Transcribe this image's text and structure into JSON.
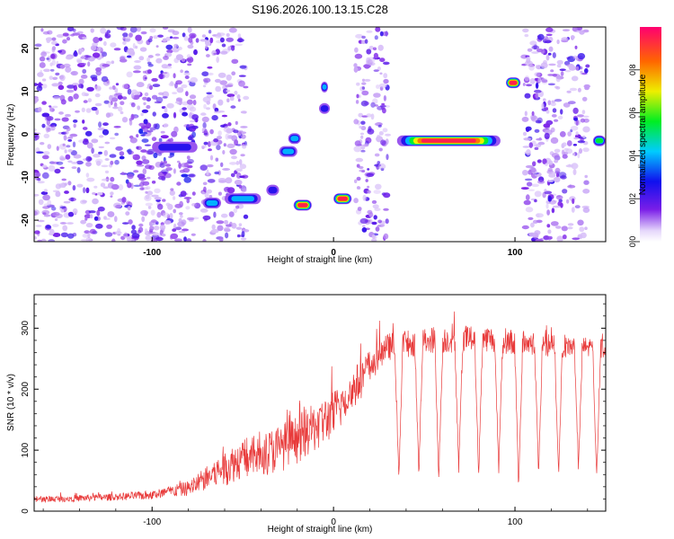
{
  "title": "S196.2026.100.13.15.C28",
  "chart_data": [
    {
      "type": "heatmap",
      "name": "spectrogram",
      "xlabel": "Height of straight line (km)",
      "ylabel": "Frequency (Hz)",
      "xlim": [
        -165,
        150
      ],
      "ylim": [
        -25,
        25
      ],
      "xticks": [
        -100,
        0,
        100
      ],
      "yticks": [
        -20,
        -10,
        0,
        10,
        20
      ],
      "colorbar": {
        "label": "Normalized spectral amplitude",
        "range": [
          0,
          1
        ],
        "ticks": [
          0.0,
          0.2,
          0.4,
          0.6,
          0.8
        ]
      },
      "noise_regions_x": [
        [
          -165,
          -75
        ],
        [
          -72,
          -48
        ],
        [
          12,
          30
        ],
        [
          105,
          140
        ]
      ],
      "features": [
        {
          "x": [
            -100,
            -75
          ],
          "y": -3,
          "amplitude": 0.35
        },
        {
          "x": [
            -72,
            -62
          ],
          "y": -16,
          "amplitude": 0.45
        },
        {
          "x": [
            -60,
            -40
          ],
          "y": -15,
          "amplitude": 0.45
        },
        {
          "x": [
            -37,
            -30
          ],
          "y": -13,
          "amplitude": 0.35
        },
        {
          "x": [
            -30,
            -20
          ],
          "y": -4,
          "amplitude": 0.5
        },
        {
          "x": [
            -25,
            -18
          ],
          "y": -1,
          "amplitude": 0.5
        },
        {
          "x": [
            -22,
            -12
          ],
          "y": -16.5,
          "amplitude": 0.95
        },
        {
          "x": [
            -8,
            -2
          ],
          "y": 6,
          "amplitude": 0.35
        },
        {
          "x": [
            -7,
            -3
          ],
          "y": 11,
          "amplitude": 0.45
        },
        {
          "x": [
            0,
            10
          ],
          "y": -15,
          "amplitude": 0.95
        },
        {
          "x": [
            35,
            92
          ],
          "y": -1.5,
          "amplitude": 0.95
        },
        {
          "x": [
            95,
            103
          ],
          "y": 12,
          "amplitude": 0.95
        },
        {
          "x": [
            143,
            150
          ],
          "y": -1.5,
          "amplitude": 0.6
        }
      ]
    },
    {
      "type": "line",
      "name": "snr",
      "xlabel": "Height of straight line (km)",
      "ylabel": "SNR (10 * v/v)",
      "xlim": [
        -165,
        150
      ],
      "ylim": [
        0,
        355
      ],
      "xticks": [
        -100,
        0,
        100
      ],
      "yticks": [
        0,
        100,
        200,
        300
      ],
      "color": "#e83a3a",
      "series_description": "noisy SNR trace rising from ~20 near -165 km to ~280-300 above 20 km, with periodic dips to ~40-60 every ~11 km from 30 to 145 km",
      "envelope": {
        "x": [
          -165,
          -120,
          -100,
          -80,
          -70,
          -60,
          -50,
          -40,
          -30,
          -20,
          -10,
          0,
          10,
          20,
          30,
          50,
          80,
          110,
          140,
          150
        ],
        "base": [
          18,
          22,
          25,
          35,
          50,
          65,
          80,
          85,
          95,
          110,
          130,
          150,
          190,
          230,
          265,
          275,
          280,
          270,
          265,
          265
        ],
        "spread": [
          10,
          12,
          15,
          25,
          40,
          60,
          65,
          70,
          80,
          80,
          80,
          80,
          70,
          60,
          45,
          45,
          45,
          40,
          35,
          35
        ]
      },
      "dips_x": [
        36,
        47,
        58,
        69,
        80,
        91,
        102,
        113,
        124,
        135,
        145
      ],
      "dip_min": [
        40,
        50,
        45,
        60,
        50,
        55,
        30,
        55,
        50,
        60,
        45
      ]
    }
  ]
}
